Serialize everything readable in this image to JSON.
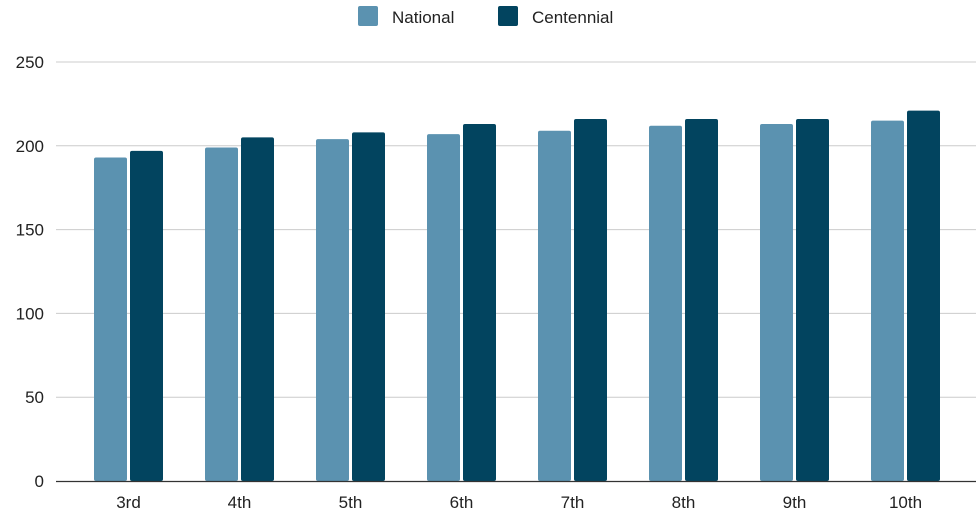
{
  "chart_data": {
    "type": "bar",
    "categories": [
      "3rd",
      "4th",
      "5th",
      "6th",
      "7th",
      "8th",
      "9th",
      "10th"
    ],
    "series": [
      {
        "name": "National",
        "color": "#5b92b0",
        "values": [
          193,
          199,
          204,
          207,
          209,
          212,
          213,
          215
        ]
      },
      {
        "name": "Centennial",
        "color": "#02445f",
        "values": [
          197,
          205,
          208,
          213,
          216,
          216,
          216,
          221
        ]
      }
    ],
    "ylim": [
      0,
      250
    ],
    "yticks": [
      0,
      50,
      100,
      150,
      200,
      250
    ],
    "grid": true,
    "legend_position": "top-center",
    "title": "",
    "xlabel": "",
    "ylabel": ""
  }
}
